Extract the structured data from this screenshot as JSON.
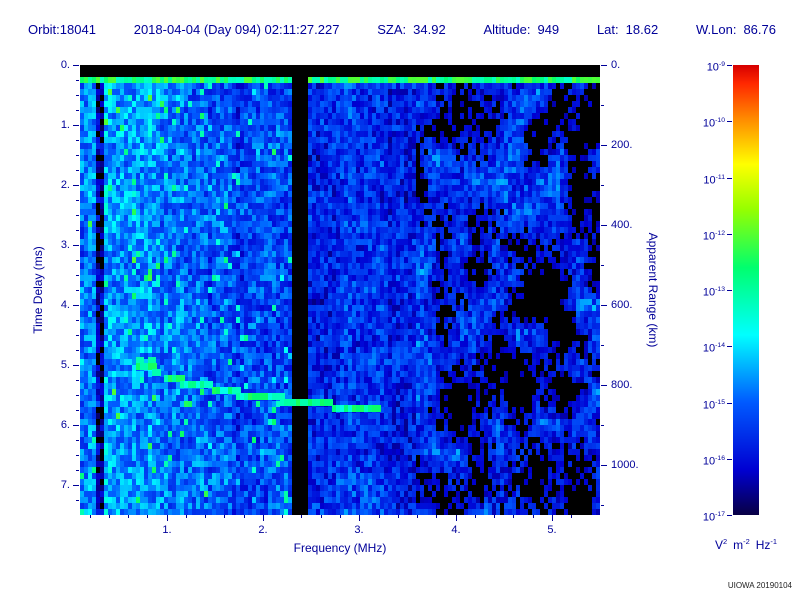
{
  "header": {
    "orbit": "Orbit:18041",
    "datetime": "2018-04-04 (Day 094) 02:11:27.227",
    "sza_label": "SZA:",
    "sza_value": "34.92",
    "altitude_label": "Altitude:",
    "altitude_value": "949",
    "lat_label": "Lat:",
    "lat_value": "18.62",
    "wlon_label": "W.Lon:",
    "wlon_value": "86.76"
  },
  "footer": {
    "credit": "UIOWA 20190104"
  },
  "colors": {
    "text": "#000099",
    "background": "#ffffff",
    "black_fill": "#000000"
  },
  "chart_data": {
    "type": "heatmap",
    "subtype": "radar-sounder-ionogram",
    "xlabel": "Frequency (MHz)",
    "ylabel_left": "Time Delay (ms)",
    "ylabel_right": "Apparent Range (km)",
    "x_range_mhz": [
      0.1,
      5.5
    ],
    "y_range_ms": [
      0,
      7.5
    ],
    "x_tick_values": [
      1,
      2,
      3,
      4,
      5
    ],
    "x_tick_labels": [
      "1.",
      "2.",
      "3.",
      "4.",
      "5."
    ],
    "y_tick_values_ms": [
      0,
      1,
      2,
      3,
      4,
      5,
      6,
      7
    ],
    "y_tick_labels": [
      "0.",
      "1.",
      "2.",
      "3.",
      "4.",
      "5.",
      "6.",
      "7."
    ],
    "right_tick_values_km": [
      0,
      200,
      400,
      600,
      800,
      1000
    ],
    "right_tick_labels": [
      "0.",
      "200.",
      "400.",
      "600.",
      "800.",
      "1000."
    ],
    "km_per_ms": 150,
    "colorbar": {
      "scale": "log10",
      "mantissa_base": "10",
      "tick_exponents": [
        -9,
        -10,
        -11,
        -12,
        -13,
        -14,
        -15,
        -16,
        -17
      ],
      "units_parts": [
        [
          "V",
          "2"
        ],
        [
          "m",
          "-2"
        ],
        [
          "Hz",
          "-1"
        ]
      ]
    },
    "features": {
      "seed": 18041,
      "top_black_band_ms": [
        0,
        0.17
      ],
      "surface_echo_line_ms": [
        0.17,
        0.3
      ],
      "rfi_gap_dark_mhz": [
        0.28,
        0.37
      ],
      "rfi_gap_black_mhz": [
        2.31,
        2.45
      ],
      "noise_floor_drop_mhz": 3.6,
      "column_base_profile": [
        [
          0.1,
          0.27
        ],
        [
          0.28,
          0.05
        ],
        [
          0.37,
          0.27
        ],
        [
          1.0,
          0.24
        ],
        [
          1.7,
          0.21
        ],
        [
          2.31,
          0.0
        ],
        [
          2.45,
          0.18
        ],
        [
          3.3,
          0.15
        ],
        [
          3.8,
          0.11
        ],
        [
          4.1,
          0.095
        ]
      ],
      "echo_trace_f_ms": [
        [
          0.72,
          5.02
        ],
        [
          0.85,
          5.1
        ],
        [
          1.0,
          5.22
        ],
        [
          1.15,
          5.3
        ],
        [
          1.35,
          5.38
        ],
        [
          1.55,
          5.44
        ],
        [
          1.75,
          5.5
        ],
        [
          2.0,
          5.56
        ],
        [
          2.25,
          5.62
        ],
        [
          2.5,
          5.66
        ],
        [
          2.75,
          5.7
        ],
        [
          3.0,
          5.74
        ],
        [
          3.2,
          5.8
        ]
      ]
    }
  }
}
